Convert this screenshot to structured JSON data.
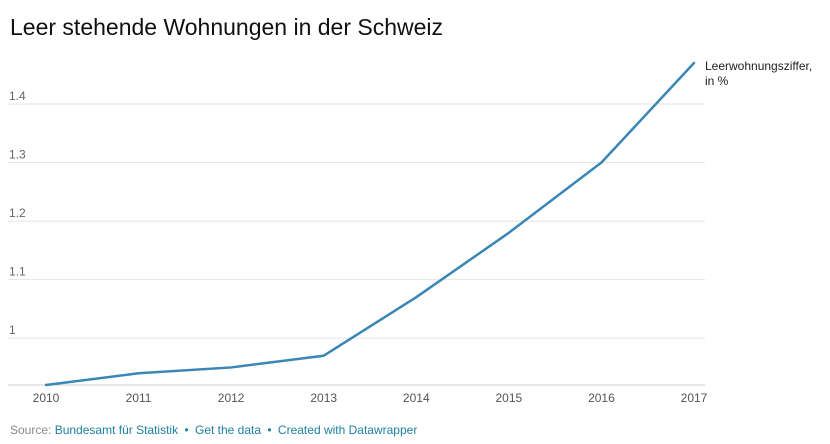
{
  "title": "Leer stehende Wohnungen in der Schweiz",
  "footer": {
    "source_label": "Source:",
    "source": "Bundesamt für Statistik",
    "get_data": "Get the data",
    "created_with": "Created with Datawrapper",
    "separator": "•"
  },
  "colors": {
    "line": "#3a86b5",
    "grid": "#e4e4e4",
    "link": "#1d81a2"
  },
  "chart_data": {
    "type": "line",
    "x": [
      "2010",
      "2011",
      "2012",
      "2013",
      "2014",
      "2015",
      "2016",
      "2017"
    ],
    "series": [
      {
        "name": "Leerwohnungsziffer, in %",
        "values": [
          0.92,
          0.94,
          0.95,
          0.97,
          1.07,
          1.18,
          1.3,
          1.47
        ]
      }
    ],
    "series_label_lines": [
      "Leerwohnungsziffer,",
      "in %"
    ],
    "yticks": [
      1,
      1.1,
      1.2,
      1.3,
      1.4
    ],
    "ytick_labels": [
      "1",
      "1.1",
      "1.2",
      "1.3",
      "1.4"
    ],
    "ylim": [
      0.92,
      1.47
    ],
    "grid": true,
    "legend": "direct label at line end"
  }
}
